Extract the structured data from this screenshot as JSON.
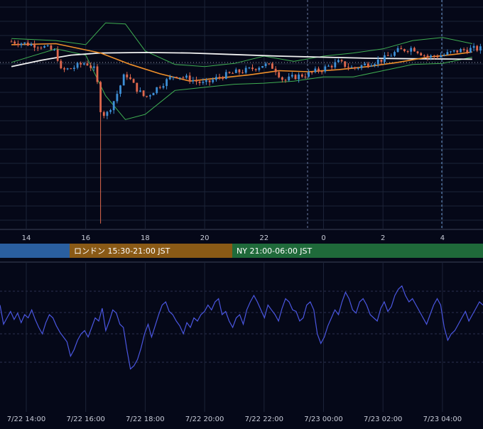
{
  "colors": {
    "background": "#050818",
    "grid": "#1c2338",
    "up_candle": "#3d8fd6",
    "down_candle": "#e0684d",
    "bollinger": "#3fae52",
    "ma_short": "#f0902a",
    "ma_long": "#f2f2f2",
    "indicator_line": "#4a56e0",
    "tick_text": "#c8ccd8",
    "session_text": "#ffffff"
  },
  "session_bar": [
    {
      "label": "",
      "color": "#2a5fa0"
    },
    {
      "label": "ロンドン 15:30-21:00 JST",
      "color": "#8a5a16"
    },
    {
      "label": "NY 21:00-06:00 JST",
      "color": "#1f6a3a"
    }
  ],
  "chart_data": [
    {
      "type": "candlestick",
      "title": "",
      "x_tick_labels": [
        "14",
        "16",
        "18",
        "20",
        "22",
        "0",
        "2",
        "4"
      ],
      "y_tick_labels": [],
      "grid": true,
      "overlays": [
        "bollinger-bands",
        "moving-average-short",
        "moving-average-long"
      ],
      "vertical_markers": [
        "7/23 00:00 (dashed)",
        "7/23 04:00 (dashed)"
      ],
      "horizontal_markers": [
        "dotted reference line"
      ],
      "candles": {
        "period_minutes": 10,
        "count": 96,
        "start": "7/22 14:00",
        "close_path": [
          {
            "t": "7/22 13:30",
            "c": 10.0
          },
          {
            "t": "7/22 14:00",
            "c": 9.8
          },
          {
            "t": "7/22 14:30",
            "c": 9.6
          },
          {
            "t": "7/22 15:00",
            "c": 9.0
          },
          {
            "t": "7/22 15:10",
            "c": 7.2
          },
          {
            "t": "7/22 15:30",
            "c": 7.4
          },
          {
            "t": "7/22 16:00",
            "c": 8.0
          },
          {
            "t": "7/22 16:20",
            "c": 7.2
          },
          {
            "t": "7/22 16:30",
            "c": 3.5,
            "low": -7.5
          },
          {
            "t": "7/22 16:40",
            "c": 2.8
          },
          {
            "t": "7/22 17:00",
            "c": 4.6
          },
          {
            "t": "7/22 17:20",
            "c": 7.0
          },
          {
            "t": "7/22 17:40",
            "c": 5.6
          },
          {
            "t": "7/22 18:00",
            "c": 4.6
          },
          {
            "t": "7/22 18:30",
            "c": 5.8
          },
          {
            "t": "7/22 19:00",
            "c": 6.8
          },
          {
            "t": "7/22 19:30",
            "c": 6.4
          },
          {
            "t": "7/22 20:00",
            "c": 5.9
          },
          {
            "t": "7/22 20:30",
            "c": 6.6
          },
          {
            "t": "7/22 21:00",
            "c": 7.0
          },
          {
            "t": "7/22 21:30",
            "c": 7.3
          },
          {
            "t": "7/22 22:00",
            "c": 7.8
          },
          {
            "t": "7/22 22:20",
            "c": 7.5
          },
          {
            "t": "7/22 22:40",
            "c": 6.2
          },
          {
            "t": "7/22 23:00",
            "c": 6.6
          },
          {
            "t": "7/22 23:30",
            "c": 6.9
          },
          {
            "t": "7/23 00:00",
            "c": 7.4
          },
          {
            "t": "7/23 00:30",
            "c": 8.0
          },
          {
            "t": "7/23 01:00",
            "c": 7.4
          },
          {
            "t": "7/23 01:30",
            "c": 7.9
          },
          {
            "t": "7/23 02:00",
            "c": 8.3
          },
          {
            "t": "7/23 02:30",
            "c": 9.1
          },
          {
            "t": "7/23 03:00",
            "c": 9.4
          },
          {
            "t": "7/23 03:30",
            "c": 8.5
          },
          {
            "t": "7/23 04:00",
            "c": 8.7
          },
          {
            "t": "7/23 04:30",
            "c": 9.1
          },
          {
            "t": "7/23 05:00",
            "c": 9.3
          }
        ],
        "ma_short": [
          {
            "t": "7/22 13:30",
            "v": 9.7
          },
          {
            "t": "7/22 15:00",
            "v": 9.8
          },
          {
            "t": "7/22 15:30",
            "v": 9.5
          },
          {
            "t": "7/22 16:30",
            "v": 8.9
          },
          {
            "t": "7/22 17:30",
            "v": 7.8
          },
          {
            "t": "7/22 18:30",
            "v": 6.9
          },
          {
            "t": "7/22 19:30",
            "v": 6.2
          },
          {
            "t": "7/22 20:30",
            "v": 6.5
          },
          {
            "t": "7/22 21:30",
            "v": 6.8
          },
          {
            "t": "7/22 22:30",
            "v": 7.2
          },
          {
            "t": "7/22 23:30",
            "v": 7.1
          },
          {
            "t": "7/23 00:30",
            "v": 7.3
          },
          {
            "t": "7/23 01:30",
            "v": 7.6
          },
          {
            "t": "7/23 02:30",
            "v": 8.0
          },
          {
            "t": "7/23 03:30",
            "v": 8.5
          },
          {
            "t": "7/23 04:30",
            "v": 8.8
          },
          {
            "t": "7/23 05:00",
            "v": 9.0
          }
        ],
        "ma_long": [
          {
            "t": "7/22 13:30",
            "v": 7.6
          },
          {
            "t": "7/22 14:30",
            "v": 8.2
          },
          {
            "t": "7/22 15:30",
            "v": 8.7
          },
          {
            "t": "7/22 16:30",
            "v": 8.9
          },
          {
            "t": "7/22 18:00",
            "v": 8.95
          },
          {
            "t": "7/22 19:30",
            "v": 8.9
          },
          {
            "t": "7/22 21:00",
            "v": 8.75
          },
          {
            "t": "7/22 22:30",
            "v": 8.6
          },
          {
            "t": "7/23 00:00",
            "v": 8.5
          },
          {
            "t": "7/23 01:30",
            "v": 8.4
          },
          {
            "t": "7/23 03:00",
            "v": 8.35
          },
          {
            "t": "7/23 05:00",
            "v": 8.3
          }
        ],
        "bb_upper": [
          {
            "t": "7/22 13:30",
            "v": 10.3
          },
          {
            "t": "7/22 15:00",
            "v": 10.1
          },
          {
            "t": "7/22 16:00",
            "v": 9.7
          },
          {
            "t": "7/22 16:40",
            "v": 11.8
          },
          {
            "t": "7/22 17:20",
            "v": 11.7
          },
          {
            "t": "7/22 18:00",
            "v": 9.1
          },
          {
            "t": "7/22 19:00",
            "v": 7.8
          },
          {
            "t": "7/22 20:00",
            "v": 7.6
          },
          {
            "t": "7/22 21:00",
            "v": 7.9
          },
          {
            "t": "7/22 22:00",
            "v": 8.6
          },
          {
            "t": "7/22 23:00",
            "v": 8.1
          },
          {
            "t": "7/23 00:00",
            "v": 8.6
          },
          {
            "t": "7/23 01:00",
            "v": 8.9
          },
          {
            "t": "7/23 02:00",
            "v": 9.3
          },
          {
            "t": "7/23 03:00",
            "v": 10.1
          },
          {
            "t": "7/23 04:00",
            "v": 10.4
          },
          {
            "t": "7/23 05:00",
            "v": 9.8
          }
        ],
        "bb_lower": [
          {
            "t": "7/22 13:30",
            "v": 8.0
          },
          {
            "t": "7/22 15:00",
            "v": 9.3
          },
          {
            "t": "7/22 16:00",
            "v": 8.7
          },
          {
            "t": "7/22 16:40",
            "v": 4.8
          },
          {
            "t": "7/22 17:20",
            "v": 2.5
          },
          {
            "t": "7/22 18:00",
            "v": 3.0
          },
          {
            "t": "7/22 19:00",
            "v": 5.3
          },
          {
            "t": "7/22 20:00",
            "v": 5.6
          },
          {
            "t": "7/22 21:00",
            "v": 5.9
          },
          {
            "t": "7/22 22:00",
            "v": 6.0
          },
          {
            "t": "7/22 23:00",
            "v": 6.2
          },
          {
            "t": "7/23 00:00",
            "v": 6.6
          },
          {
            "t": "7/23 01:00",
            "v": 6.6
          },
          {
            "t": "7/23 02:00",
            "v": 7.2
          },
          {
            "t": "7/23 03:00",
            "v": 7.8
          },
          {
            "t": "7/23 04:00",
            "v": 7.9
          },
          {
            "t": "7/23 05:00",
            "v": 8.5
          }
        ]
      }
    },
    {
      "type": "line",
      "title": "",
      "xlabel": "",
      "ylabel": "",
      "x_tick_labels": [
        "7/22 14:00",
        "7/22 16:00",
        "7/22 18:00",
        "7/22 20:00",
        "7/22 22:00",
        "7/23 00:00",
        "7/23 02:00",
        "7/23 04:00"
      ],
      "y_tick_labels": [],
      "grid": true,
      "y_reference_levels": [
        "upper dashed",
        "middle dashed",
        "lower dashed"
      ],
      "series": [
        {
          "values": [
            58,
            46,
            50,
            54,
            49,
            53,
            47,
            52,
            50,
            55,
            49,
            44,
            40,
            47,
            52,
            50,
            45,
            41,
            38,
            35,
            26,
            30,
            36,
            40,
            42,
            38,
            44,
            50,
            48,
            56,
            42,
            48,
            55,
            53,
            46,
            44,
            30,
            18,
            20,
            24,
            31,
            40,
            46,
            38,
            45,
            52,
            58,
            60,
            54,
            52,
            48,
            45,
            40,
            47,
            44,
            50,
            48,
            52,
            54,
            58,
            55,
            60,
            62,
            52,
            54,
            48,
            44,
            50,
            52,
            46,
            55,
            60,
            64,
            60,
            55,
            50,
            58,
            55,
            52,
            48,
            56,
            62,
            60,
            55,
            54,
            48,
            50,
            58,
            60,
            55,
            40,
            34,
            38,
            45,
            50,
            55,
            52,
            60,
            66,
            62,
            55,
            53,
            60,
            62,
            58,
            52,
            50,
            48,
            56,
            60,
            54,
            57,
            64,
            68,
            70,
            64,
            60,
            62,
            58,
            54,
            50,
            46,
            52,
            58,
            62,
            58,
            44,
            36,
            40,
            42,
            46,
            50,
            54,
            48,
            52,
            56,
            60,
            58
          ]
        }
      ]
    }
  ]
}
